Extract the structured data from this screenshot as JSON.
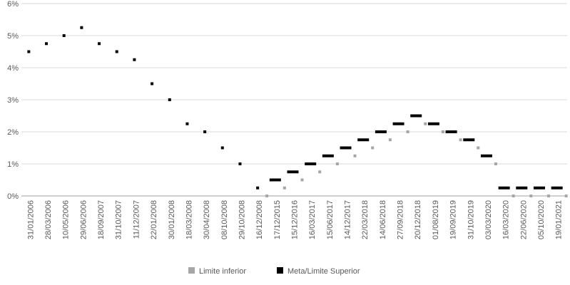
{
  "chart_data": {
    "type": "scatter",
    "title": "",
    "xlabel": "",
    "ylabel": "",
    "ylim": [
      0,
      6
    ],
    "yticks": [
      "0%",
      "1%",
      "2%",
      "3%",
      "4%",
      "5%",
      "6%"
    ],
    "grid": true,
    "legend_position": "bottom",
    "categories": [
      "31/01/2006",
      "28/03/2006",
      "10/05/2006",
      "29/06/2006",
      "18/09/2007",
      "31/10/2007",
      "11/12/2007",
      "22/01/2008",
      "30/01/2008",
      "18/03/2008",
      "30/04/2008",
      "08/10/2008",
      "29/10/2008",
      "16/12/2008",
      "17/12/2015",
      "15/12/2016",
      "16/03/2017",
      "15/06/2017",
      "14/12/2017",
      "22/03/2018",
      "14/06/2018",
      "27/09/2018",
      "20/12/2018",
      "01/08/2019",
      "19/09/2019",
      "31/10/2019",
      "03/03/2020",
      "16/03/2020",
      "22/06/2020",
      "05/10/2020",
      "19/01/2021"
    ],
    "series": [
      {
        "name": "Limite inferior",
        "color": "#a6a6a6",
        "values": [
          null,
          null,
          null,
          null,
          null,
          null,
          null,
          null,
          null,
          null,
          null,
          null,
          null,
          0,
          0.25,
          0.5,
          0.75,
          1.0,
          1.25,
          1.5,
          1.75,
          2.0,
          2.25,
          2.0,
          1.75,
          1.5,
          1.0,
          0,
          0,
          0,
          0
        ]
      },
      {
        "name": "Meta/Limite Superior",
        "color": "#000000",
        "values": [
          4.5,
          4.75,
          5.0,
          5.25,
          4.75,
          4.5,
          4.25,
          3.5,
          3.0,
          2.25,
          2.0,
          1.5,
          1.0,
          0.25,
          0.5,
          0.75,
          1.0,
          1.25,
          1.5,
          1.75,
          2.0,
          2.25,
          2.5,
          2.25,
          2.0,
          1.75,
          1.25,
          0.25,
          0.25,
          0.25,
          0.25
        ]
      }
    ]
  }
}
